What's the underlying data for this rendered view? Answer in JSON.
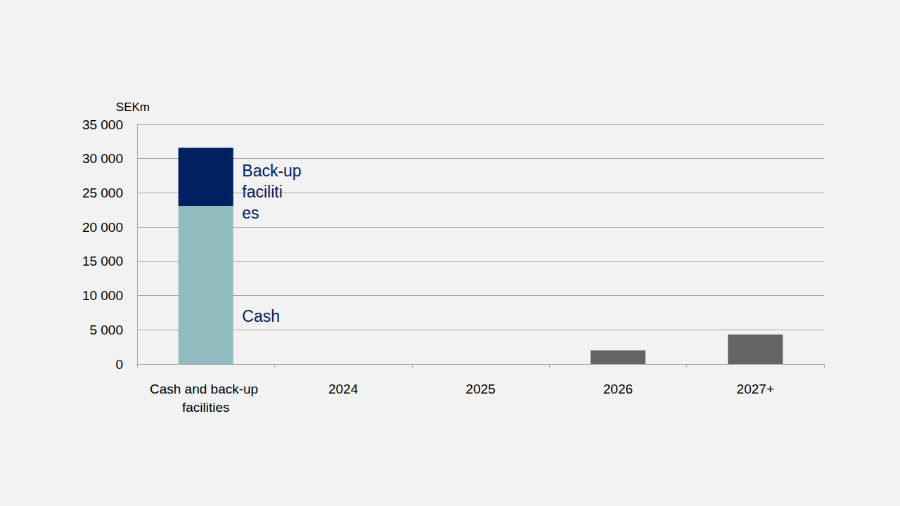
{
  "chart_data": {
    "type": "bar",
    "ylabel": "SEKm",
    "categories": [
      "Cash and back-up facilities",
      "2024",
      "2025",
      "2026",
      "2027+"
    ],
    "series": [
      {
        "name": "Cash",
        "color": "#8fbcbf",
        "values": [
          23100,
          null,
          null,
          null,
          null
        ]
      },
      {
        "name": "Back-up facilities",
        "color": "#002060",
        "values": [
          8500,
          null,
          null,
          null,
          null
        ]
      },
      {
        "color": "#646466",
        "values": [
          null,
          0,
          0,
          2000,
          4300
        ]
      }
    ],
    "stacked": true,
    "ylim": [
      0,
      35000
    ],
    "yticks": [
      0,
      {
        "value": 5000,
        "label": "5 000"
      },
      {
        "value": 10000,
        "label": "10 000"
      },
      {
        "value": 15000,
        "label": "15 000"
      },
      {
        "value": 20000,
        "label": "20 000"
      },
      {
        "value": 25000,
        "label": "25 000"
      },
      {
        "value": 30000,
        "label": "30 000"
      },
      {
        "value": 35000,
        "label": "35 000"
      }
    ],
    "grid": true
  }
}
